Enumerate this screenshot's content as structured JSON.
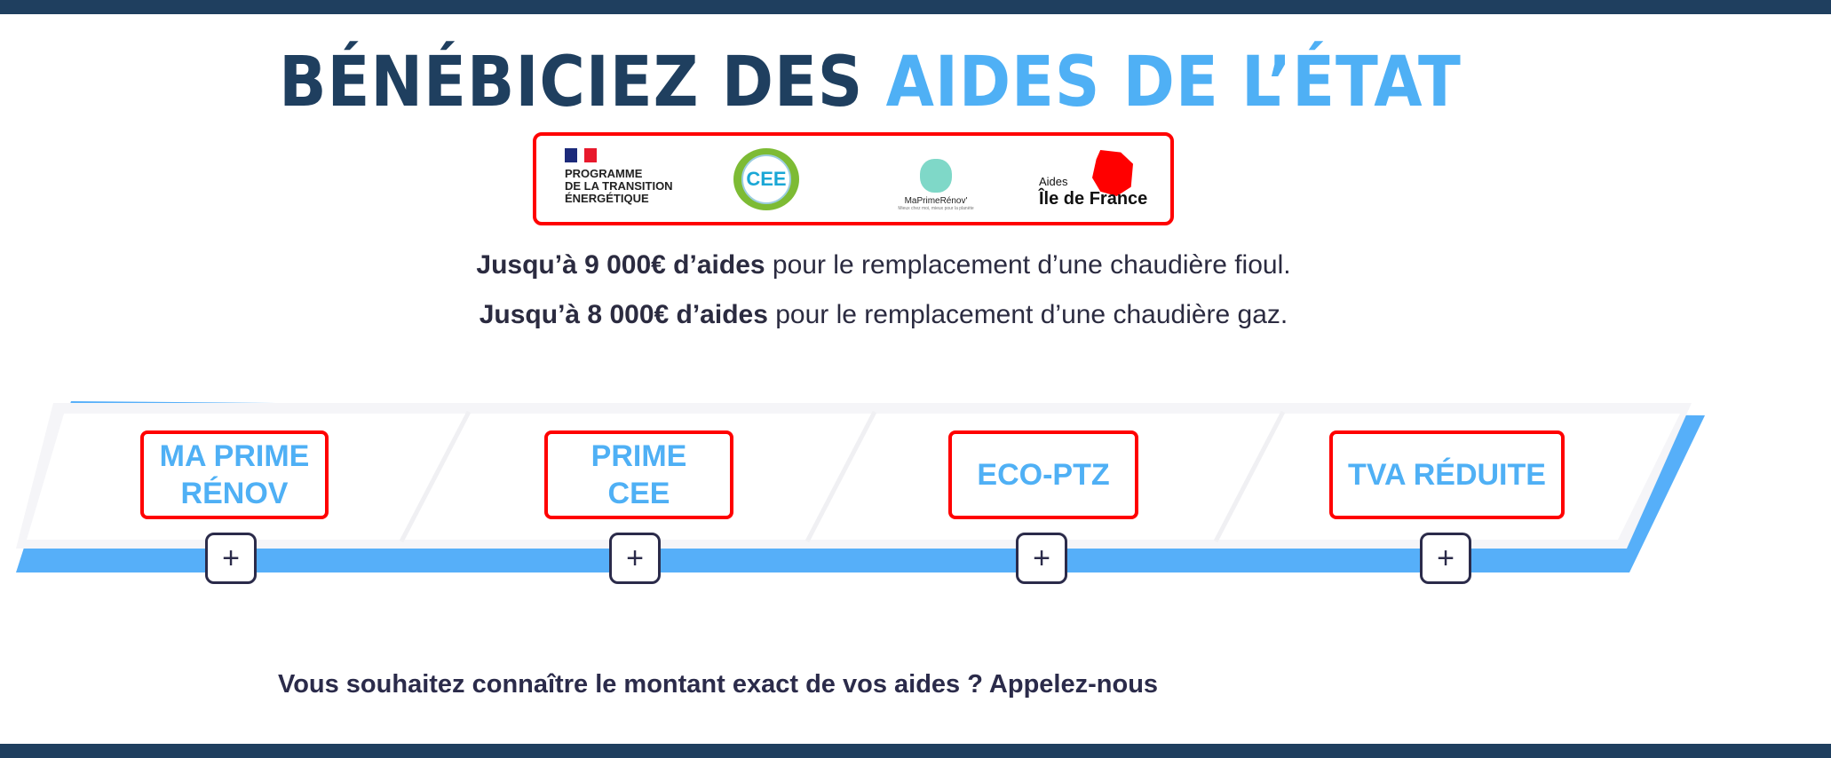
{
  "heading": {
    "main": "BÉNÉBICIEZ DES ",
    "accent": "AIDES DE L’ÉTAT"
  },
  "logos": {
    "programme": [
      "PROGRAMME",
      "DE LA TRANSITION",
      "ÉNERGÉTIQUE"
    ],
    "cee": "CEE",
    "maprimerenov": "MaPrimeRénov'",
    "maprimerenov_tagline": "Mieux chez moi, mieux pour la planète",
    "idf_small": "Aides",
    "idf_large": "Île de France"
  },
  "lines": [
    {
      "bold": "Jusqu’à 9 000€ d’aides",
      "rest": " pour le remplacement d’une chaudière fioul."
    },
    {
      "bold": "Jusqu’à 8 000€ d’aides",
      "rest": " pour le remplacement d’une chaudière gaz."
    }
  ],
  "aides": [
    {
      "label": "MA PRIME RÉNOV",
      "expand": "+"
    },
    {
      "label": "PRIME CEE",
      "expand": "+"
    },
    {
      "label": "ECO-PTZ",
      "expand": "+"
    },
    {
      "label": "TVA RÉDUITE",
      "expand": "+"
    }
  ],
  "cta": "Vous souhaitez connaître le montant exact de vos aides ? Appelez-nous",
  "colors": {
    "navy": "#1f3f5f",
    "accent": "#4fb0f5",
    "highlight": "#ff0000"
  }
}
